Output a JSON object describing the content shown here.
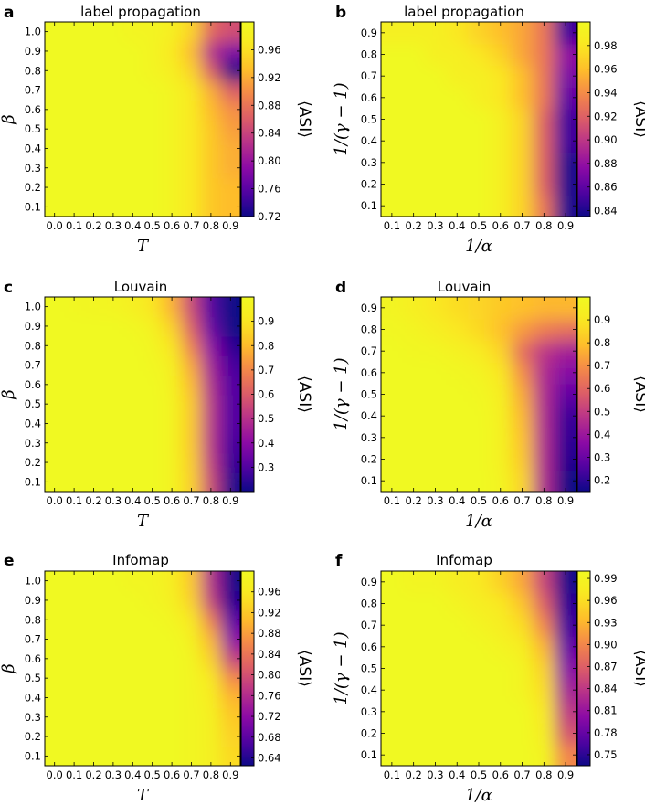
{
  "chart_data": [
    {
      "type": "heatmap",
      "panel": "a",
      "title": "label propagation",
      "xlabel": "T",
      "ylabel": "β",
      "x_ticks": [
        "0.0",
        "0.1",
        "0.2",
        "0.3",
        "0.4",
        "0.5",
        "0.6",
        "0.7",
        "0.8",
        "0.9"
      ],
      "y_ticks": [
        "0.1",
        "0.2",
        "0.3",
        "0.4",
        "0.5",
        "0.6",
        "0.7",
        "0.8",
        "0.9",
        "1.0"
      ],
      "xlim": [
        -0.05,
        0.95
      ],
      "ylim": [
        0.05,
        1.05
      ],
      "colorbar_label": "⟨ASI⟩",
      "colorbar_ticks": [
        "0.72",
        "0.76",
        "0.80",
        "0.84",
        "0.88",
        "0.92",
        "0.96"
      ],
      "colorbar_range": [
        0.72,
        1.0
      ],
      "colormap": "plasma",
      "rows_y": [
        0.1,
        0.2,
        0.3,
        0.4,
        0.5,
        0.6,
        0.7,
        0.8,
        0.9,
        1.0
      ],
      "cols_x": [
        0.0,
        0.1,
        0.2,
        0.3,
        0.4,
        0.5,
        0.6,
        0.7,
        0.8,
        0.9
      ],
      "values": [
        [
          1.0,
          1.0,
          1.0,
          1.0,
          1.0,
          1.0,
          0.99,
          0.97,
          0.94,
          0.93
        ],
        [
          1.0,
          1.0,
          1.0,
          1.0,
          1.0,
          1.0,
          0.99,
          0.97,
          0.94,
          0.93
        ],
        [
          1.0,
          1.0,
          1.0,
          1.0,
          1.0,
          1.0,
          0.99,
          0.97,
          0.94,
          0.92
        ],
        [
          1.0,
          1.0,
          1.0,
          1.0,
          1.0,
          1.0,
          0.99,
          0.97,
          0.94,
          0.92
        ],
        [
          1.0,
          1.0,
          1.0,
          1.0,
          1.0,
          1.0,
          0.99,
          0.97,
          0.94,
          0.91
        ],
        [
          1.0,
          1.0,
          1.0,
          1.0,
          1.0,
          1.0,
          0.99,
          0.97,
          0.93,
          0.9
        ],
        [
          1.0,
          1.0,
          1.0,
          1.0,
          1.0,
          1.0,
          0.99,
          0.97,
          0.92,
          0.86
        ],
        [
          1.0,
          1.0,
          1.0,
          1.0,
          1.0,
          0.99,
          0.98,
          0.95,
          0.86,
          0.72
        ],
        [
          1.0,
          1.0,
          1.0,
          1.0,
          1.0,
          0.99,
          0.97,
          0.93,
          0.82,
          0.78
        ],
        [
          1.0,
          1.0,
          1.0,
          1.0,
          0.99,
          0.99,
          0.98,
          0.95,
          0.87,
          0.85
        ]
      ]
    },
    {
      "type": "heatmap",
      "panel": "b",
      "title": "label propagation",
      "xlabel": "1/α",
      "ylabel": "1/(γ − 1)",
      "x_ticks": [
        "0.1",
        "0.2",
        "0.3",
        "0.4",
        "0.5",
        "0.6",
        "0.7",
        "0.8",
        "0.9"
      ],
      "y_ticks": [
        "0.1",
        "0.2",
        "0.3",
        "0.4",
        "0.5",
        "0.6",
        "0.7",
        "0.8",
        "0.9"
      ],
      "xlim": [
        0.05,
        0.95
      ],
      "ylim": [
        0.05,
        0.95
      ],
      "colorbar_label": "⟨ASI⟩",
      "colorbar_ticks": [
        "0.84",
        "0.86",
        "0.88",
        "0.90",
        "0.92",
        "0.94",
        "0.96",
        "0.98"
      ],
      "colorbar_range": [
        0.835,
        1.0
      ],
      "colormap": "plasma",
      "rows_y": [
        0.1,
        0.2,
        0.3,
        0.4,
        0.5,
        0.6,
        0.7,
        0.8,
        0.9
      ],
      "cols_x": [
        0.1,
        0.2,
        0.3,
        0.4,
        0.5,
        0.6,
        0.7,
        0.8,
        0.9
      ],
      "values": [
        [
          1.0,
          1.0,
          1.0,
          1.0,
          1.0,
          0.99,
          0.97,
          0.93,
          0.84
        ],
        [
          1.0,
          1.0,
          1.0,
          1.0,
          1.0,
          0.99,
          0.97,
          0.92,
          0.84
        ],
        [
          1.0,
          1.0,
          1.0,
          1.0,
          1.0,
          0.99,
          0.97,
          0.92,
          0.84
        ],
        [
          1.0,
          1.0,
          1.0,
          1.0,
          1.0,
          0.99,
          0.97,
          0.92,
          0.85
        ],
        [
          1.0,
          1.0,
          1.0,
          1.0,
          1.0,
          0.99,
          0.97,
          0.92,
          0.85
        ],
        [
          1.0,
          1.0,
          1.0,
          1.0,
          0.99,
          0.98,
          0.96,
          0.93,
          0.86
        ],
        [
          1.0,
          1.0,
          1.0,
          0.99,
          0.99,
          0.98,
          0.96,
          0.93,
          0.87
        ],
        [
          1.0,
          1.0,
          0.99,
          0.99,
          0.98,
          0.97,
          0.95,
          0.93,
          0.88
        ],
        [
          0.99,
          0.99,
          0.99,
          0.98,
          0.97,
          0.96,
          0.95,
          0.93,
          0.85
        ]
      ]
    },
    {
      "type": "heatmap",
      "panel": "c",
      "title": "Louvain",
      "xlabel": "T",
      "ylabel": "β",
      "x_ticks": [
        "0.0",
        "0.1",
        "0.2",
        "0.3",
        "0.4",
        "0.5",
        "0.6",
        "0.7",
        "0.8",
        "0.9"
      ],
      "y_ticks": [
        "0.1",
        "0.2",
        "0.3",
        "0.4",
        "0.5",
        "0.6",
        "0.7",
        "0.8",
        "0.9",
        "1.0"
      ],
      "xlim": [
        -0.05,
        0.95
      ],
      "ylim": [
        0.05,
        1.05
      ],
      "colorbar_label": "⟨ASI⟩",
      "colorbar_ticks": [
        "0.3",
        "0.4",
        "0.5",
        "0.6",
        "0.7",
        "0.8",
        "0.9"
      ],
      "colorbar_range": [
        0.2,
        1.0
      ],
      "colormap": "plasma",
      "rows_y": [
        0.1,
        0.2,
        0.3,
        0.4,
        0.5,
        0.6,
        0.7,
        0.8,
        0.9,
        1.0
      ],
      "cols_x": [
        0.0,
        0.1,
        0.2,
        0.3,
        0.4,
        0.5,
        0.6,
        0.7,
        0.8,
        0.9
      ],
      "values": [
        [
          1.0,
          1.0,
          1.0,
          1.0,
          1.0,
          1.0,
          0.97,
          0.85,
          0.55,
          0.22
        ],
        [
          1.0,
          1.0,
          1.0,
          1.0,
          1.0,
          1.0,
          0.97,
          0.84,
          0.52,
          0.26
        ],
        [
          1.0,
          1.0,
          1.0,
          1.0,
          1.0,
          1.0,
          0.97,
          0.83,
          0.5,
          0.28
        ],
        [
          1.0,
          1.0,
          1.0,
          1.0,
          1.0,
          1.0,
          0.97,
          0.83,
          0.5,
          0.3
        ],
        [
          1.0,
          1.0,
          1.0,
          1.0,
          1.0,
          1.0,
          0.97,
          0.83,
          0.5,
          0.3
        ],
        [
          1.0,
          1.0,
          1.0,
          1.0,
          1.0,
          1.0,
          0.96,
          0.8,
          0.48,
          0.3
        ],
        [
          1.0,
          1.0,
          1.0,
          1.0,
          1.0,
          0.99,
          0.95,
          0.76,
          0.45,
          0.28
        ],
        [
          1.0,
          1.0,
          1.0,
          1.0,
          1.0,
          0.98,
          0.9,
          0.68,
          0.4,
          0.24
        ],
        [
          1.0,
          1.0,
          1.0,
          1.0,
          0.99,
          0.96,
          0.85,
          0.6,
          0.33,
          0.2
        ],
        [
          1.0,
          0.99,
          0.98,
          0.97,
          0.95,
          0.9,
          0.78,
          0.55,
          0.3,
          0.15
        ]
      ]
    },
    {
      "type": "heatmap",
      "panel": "d",
      "title": "Louvain",
      "xlabel": "1/α",
      "ylabel": "1/(γ − 1)",
      "x_ticks": [
        "0.1",
        "0.2",
        "0.3",
        "0.4",
        "0.5",
        "0.6",
        "0.7",
        "0.8",
        "0.9"
      ],
      "y_ticks": [
        "0.1",
        "0.2",
        "0.3",
        "0.4",
        "0.5",
        "0.6",
        "0.7",
        "0.8",
        "0.9"
      ],
      "xlim": [
        0.05,
        0.95
      ],
      "ylim": [
        0.05,
        0.95
      ],
      "colorbar_label": "⟨ASI⟩",
      "colorbar_ticks": [
        "0.2",
        "0.3",
        "0.4",
        "0.5",
        "0.6",
        "0.7",
        "0.8",
        "0.9"
      ],
      "colorbar_range": [
        0.15,
        1.0
      ],
      "colormap": "plasma",
      "rows_y": [
        0.1,
        0.2,
        0.3,
        0.4,
        0.5,
        0.6,
        0.7,
        0.8,
        0.9
      ],
      "cols_x": [
        0.1,
        0.2,
        0.3,
        0.4,
        0.5,
        0.6,
        0.7,
        0.8,
        0.9
      ],
      "values": [
        [
          1.0,
          1.0,
          1.0,
          1.0,
          1.0,
          0.97,
          0.85,
          0.45,
          0.15
        ],
        [
          1.0,
          1.0,
          1.0,
          1.0,
          1.0,
          0.96,
          0.82,
          0.45,
          0.18
        ],
        [
          1.0,
          1.0,
          1.0,
          1.0,
          1.0,
          0.96,
          0.8,
          0.45,
          0.2
        ],
        [
          1.0,
          1.0,
          1.0,
          1.0,
          1.0,
          0.95,
          0.78,
          0.45,
          0.22
        ],
        [
          1.0,
          1.0,
          1.0,
          1.0,
          0.99,
          0.94,
          0.75,
          0.45,
          0.28
        ],
        [
          1.0,
          1.0,
          1.0,
          0.99,
          0.97,
          0.9,
          0.7,
          0.45,
          0.35
        ],
        [
          1.0,
          0.99,
          0.98,
          0.96,
          0.92,
          0.85,
          0.62,
          0.48,
          0.42
        ],
        [
          0.99,
          0.97,
          0.94,
          0.9,
          0.86,
          0.8,
          0.72,
          0.65,
          0.62
        ],
        [
          0.97,
          0.94,
          0.9,
          0.87,
          0.85,
          0.82,
          0.8,
          0.78,
          0.78
        ]
      ]
    },
    {
      "type": "heatmap",
      "panel": "e",
      "title": "Infomap",
      "xlabel": "T",
      "ylabel": "β",
      "x_ticks": [
        "0.0",
        "0.1",
        "0.2",
        "0.3",
        "0.4",
        "0.5",
        "0.6",
        "0.7",
        "0.8",
        "0.9"
      ],
      "y_ticks": [
        "0.1",
        "0.2",
        "0.3",
        "0.4",
        "0.5",
        "0.6",
        "0.7",
        "0.8",
        "0.9",
        "1.0"
      ],
      "xlim": [
        -0.05,
        0.95
      ],
      "ylim": [
        0.05,
        1.05
      ],
      "colorbar_label": "⟨ASI⟩",
      "colorbar_ticks": [
        "0.64",
        "0.68",
        "0.72",
        "0.76",
        "0.80",
        "0.84",
        "0.88",
        "0.92",
        "0.96"
      ],
      "colorbar_range": [
        0.625,
        1.0
      ],
      "colormap": "plasma",
      "rows_y": [
        0.1,
        0.2,
        0.3,
        0.4,
        0.5,
        0.6,
        0.7,
        0.8,
        0.9,
        1.0
      ],
      "cols_x": [
        0.0,
        0.1,
        0.2,
        0.3,
        0.4,
        0.5,
        0.6,
        0.7,
        0.8,
        0.9
      ],
      "values": [
        [
          1.0,
          1.0,
          1.0,
          1.0,
          1.0,
          1.0,
          1.0,
          0.99,
          0.98,
          0.94
        ],
        [
          1.0,
          1.0,
          1.0,
          1.0,
          1.0,
          1.0,
          1.0,
          0.99,
          0.98,
          0.93
        ],
        [
          1.0,
          1.0,
          1.0,
          1.0,
          1.0,
          1.0,
          1.0,
          0.99,
          0.98,
          0.92
        ],
        [
          1.0,
          1.0,
          1.0,
          1.0,
          1.0,
          1.0,
          1.0,
          0.99,
          0.97,
          0.9
        ],
        [
          1.0,
          1.0,
          1.0,
          1.0,
          1.0,
          1.0,
          1.0,
          0.99,
          0.96,
          0.86
        ],
        [
          1.0,
          1.0,
          1.0,
          1.0,
          1.0,
          1.0,
          1.0,
          0.99,
          0.93,
          0.78
        ],
        [
          1.0,
          1.0,
          1.0,
          1.0,
          1.0,
          1.0,
          1.0,
          0.98,
          0.9,
          0.72
        ],
        [
          1.0,
          1.0,
          1.0,
          1.0,
          1.0,
          1.0,
          0.99,
          0.96,
          0.85,
          0.68
        ],
        [
          1.0,
          1.0,
          1.0,
          1.0,
          1.0,
          0.99,
          0.98,
          0.93,
          0.78,
          0.64
        ],
        [
          1.0,
          1.0,
          1.0,
          1.0,
          0.99,
          0.99,
          0.97,
          0.92,
          0.76,
          0.63
        ]
      ]
    },
    {
      "type": "heatmap",
      "panel": "f",
      "title": "Infomap",
      "xlabel": "1/α",
      "ylabel": "1/(γ − 1)",
      "x_ticks": [
        "0.1",
        "0.2",
        "0.3",
        "0.4",
        "0.5",
        "0.6",
        "0.7",
        "0.8",
        "0.9"
      ],
      "y_ticks": [
        "0.1",
        "0.2",
        "0.3",
        "0.4",
        "0.5",
        "0.6",
        "0.7",
        "0.8",
        "0.9"
      ],
      "xlim": [
        0.05,
        0.95
      ],
      "ylim": [
        0.05,
        0.95
      ],
      "colorbar_label": "⟨ASI⟩",
      "colorbar_ticks": [
        "0.75",
        "0.78",
        "0.81",
        "0.84",
        "0.87",
        "0.90",
        "0.93",
        "0.96",
        "0.99"
      ],
      "colorbar_range": [
        0.735,
        1.0
      ],
      "colormap": "plasma",
      "rows_y": [
        0.1,
        0.2,
        0.3,
        0.4,
        0.5,
        0.6,
        0.7,
        0.8,
        0.9
      ],
      "cols_x": [
        0.1,
        0.2,
        0.3,
        0.4,
        0.5,
        0.6,
        0.7,
        0.8,
        0.9
      ],
      "values": [
        [
          1.0,
          1.0,
          1.0,
          1.0,
          1.0,
          1.0,
          1.0,
          0.99,
          0.9
        ],
        [
          1.0,
          1.0,
          1.0,
          1.0,
          1.0,
          1.0,
          1.0,
          0.98,
          0.86
        ],
        [
          1.0,
          1.0,
          1.0,
          1.0,
          1.0,
          1.0,
          1.0,
          0.97,
          0.84
        ],
        [
          1.0,
          1.0,
          1.0,
          1.0,
          1.0,
          1.0,
          0.99,
          0.96,
          0.82
        ],
        [
          1.0,
          1.0,
          1.0,
          1.0,
          1.0,
          1.0,
          0.99,
          0.95,
          0.8
        ],
        [
          1.0,
          1.0,
          1.0,
          1.0,
          1.0,
          0.99,
          0.98,
          0.93,
          0.78
        ],
        [
          1.0,
          1.0,
          1.0,
          1.0,
          0.99,
          0.98,
          0.96,
          0.9,
          0.76
        ],
        [
          1.0,
          1.0,
          1.0,
          0.99,
          0.98,
          0.97,
          0.94,
          0.87,
          0.75
        ],
        [
          1.0,
          0.99,
          0.99,
          0.98,
          0.97,
          0.95,
          0.92,
          0.85,
          0.74
        ]
      ]
    }
  ]
}
